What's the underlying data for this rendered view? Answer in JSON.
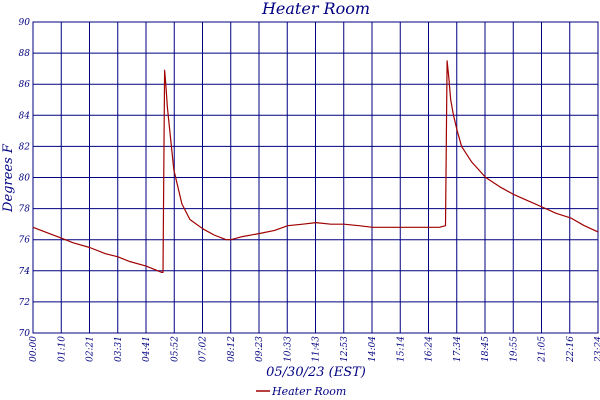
{
  "chart_data": {
    "type": "line",
    "title": "Heater Room",
    "xlabel": "05/30/23 (EST)",
    "ylabel": "Degrees F",
    "ylim": [
      70,
      90
    ],
    "yticks": [
      "70",
      "72",
      "74",
      "76",
      "78",
      "80",
      "82",
      "84",
      "86",
      "88",
      "90"
    ],
    "xlim": [
      "00:00",
      "23:24"
    ],
    "xticks": [
      "00:00",
      "01:10",
      "02:21",
      "03:31",
      "04:41",
      "05:52",
      "07:02",
      "08:12",
      "09:23",
      "10:33",
      "11:43",
      "12:53",
      "14:04",
      "15:14",
      "16:24",
      "17:34",
      "18:45",
      "19:55",
      "21:05",
      "22:16",
      "23:24"
    ],
    "grid": true,
    "legend_position": "bottom-center",
    "colors": {
      "series": "#A00000",
      "grid": "#000080",
      "text": "#000080"
    },
    "series": [
      {
        "name": "Heater Room",
        "x": [
          "00:00",
          "00:30",
          "01:10",
          "01:40",
          "02:21",
          "03:00",
          "03:31",
          "04:00",
          "04:41",
          "05:10",
          "05:20",
          "05:23",
          "05:27",
          "05:30",
          "05:34",
          "05:40",
          "05:50",
          "06:10",
          "06:30",
          "07:02",
          "07:30",
          "08:00",
          "08:12",
          "08:40",
          "09:23",
          "10:00",
          "10:33",
          "11:10",
          "11:43",
          "12:20",
          "12:53",
          "13:30",
          "14:04",
          "14:40",
          "15:14",
          "15:50",
          "16:24",
          "16:50",
          "17:05",
          "17:09",
          "17:13",
          "17:18",
          "17:25",
          "17:34",
          "17:45",
          "18:10",
          "18:45",
          "19:20",
          "19:55",
          "20:30",
          "21:05",
          "21:40",
          "22:16",
          "22:50",
          "23:24"
        ],
        "y": [
          76.8,
          76.5,
          76.1,
          75.8,
          75.5,
          75.1,
          74.9,
          74.6,
          74.3,
          74.0,
          73.9,
          73.9,
          86.9,
          86.0,
          84.5,
          83.0,
          80.5,
          78.3,
          77.3,
          76.7,
          76.3,
          76.0,
          76.0,
          76.2,
          76.4,
          76.6,
          76.9,
          77.0,
          77.1,
          77.0,
          77.0,
          76.9,
          76.8,
          76.8,
          76.8,
          76.8,
          76.8,
          76.8,
          76.9,
          87.5,
          86.5,
          85.0,
          84.0,
          83.0,
          82.0,
          81.0,
          80.0,
          79.4,
          78.9,
          78.5,
          78.1,
          77.7,
          77.4,
          76.9,
          76.5
        ]
      }
    ]
  }
}
